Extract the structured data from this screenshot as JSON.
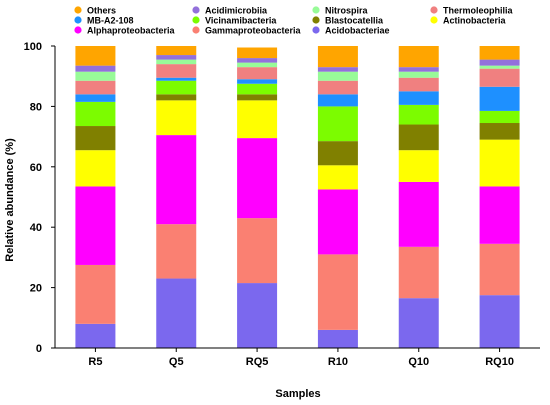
{
  "chart_data": {
    "type": "bar",
    "stacked": true,
    "xlabel": "Samples",
    "ylabel": "Relative abundance (%)",
    "ylim": [
      0,
      100
    ],
    "yticks": [
      "0",
      "20",
      "40",
      "60",
      "80",
      "100"
    ],
    "categories": [
      "R5",
      "Q5",
      "RQ5",
      "R10",
      "Q10",
      "RQ10"
    ],
    "legend_position": "top",
    "legend_order": [
      "Others",
      "Acidimicrobiia",
      "Nitrospira",
      "Thermoleophilia",
      "MB-A2-108",
      "Vicinamibacteria",
      "Blastocatellia",
      "Actinobacteria",
      "Alphaproteobacteria",
      "Gammaproteobacteria",
      "Acidobacteriae"
    ],
    "series": [
      {
        "name": "Acidobacteriae",
        "color": "#7b68ee",
        "values": [
          8,
          23,
          21.5,
          6,
          16.5,
          17.5
        ]
      },
      {
        "name": "Gammaproteobacteria",
        "color": "#fa8072",
        "values": [
          19.5,
          18,
          21.5,
          25,
          17,
          17
        ]
      },
      {
        "name": "Alphaproteobacteria",
        "color": "#ff00ff",
        "values": [
          26,
          29.5,
          26.5,
          21.5,
          21.5,
          19
        ]
      },
      {
        "name": "Actinobacteria",
        "color": "#ffff00",
        "values": [
          12,
          11.5,
          12.5,
          8,
          10.5,
          15.5
        ]
      },
      {
        "name": "Blastocatellia",
        "color": "#808000",
        "values": [
          8,
          2,
          2,
          8,
          8.5,
          5.5
        ]
      },
      {
        "name": "Vicinamibacteria",
        "color": "#7cfc00",
        "values": [
          8,
          4.5,
          3.5,
          11.5,
          6.5,
          4
        ]
      },
      {
        "name": "MB-A2-108",
        "color": "#1e90ff",
        "values": [
          2.5,
          1,
          1.5,
          4,
          4.5,
          8
        ]
      },
      {
        "name": "Thermoleophilia",
        "color": "#f08080",
        "values": [
          4.5,
          4.5,
          4,
          4.5,
          4.5,
          6
        ]
      },
      {
        "name": "Nitrospira",
        "color": "#98fb98",
        "values": [
          3,
          1.5,
          1.5,
          3,
          2,
          1
        ]
      },
      {
        "name": "Acidimicrobiia",
        "color": "#9370db",
        "values": [
          2,
          1.5,
          1.5,
          1.5,
          1.5,
          2
        ]
      },
      {
        "name": "Others",
        "color": "#ffa500",
        "values": [
          6.5,
          3,
          3.5,
          7,
          7,
          4.5
        ]
      }
    ]
  }
}
